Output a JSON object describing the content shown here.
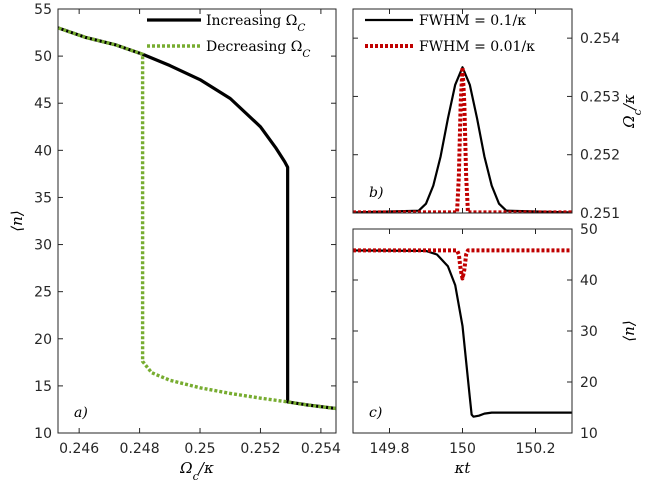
{
  "chart_data": [
    {
      "id": "a",
      "type": "line",
      "panel_label": "a)",
      "xlabel": "Ω_c/κ",
      "ylabel": "⟨n⟩",
      "xlim": [
        0.2453,
        0.2545
      ],
      "ylim": [
        10,
        55
      ],
      "xticks": [
        0.246,
        0.248,
        0.25,
        0.252,
        0.254
      ],
      "xtick_labels": [
        "0.246",
        "0.248",
        "0.25",
        "0.252",
        "0.254"
      ],
      "yticks": [
        10,
        15,
        20,
        25,
        30,
        35,
        40,
        45,
        50,
        55
      ],
      "ytick_labels": [
        "10",
        "15",
        "20",
        "25",
        "30",
        "35",
        "40",
        "45",
        "50",
        "55"
      ],
      "grid": false,
      "legend_position": "top-right",
      "series": [
        {
          "name": "Increasing Ω_C",
          "color": "#000000",
          "style": "solid",
          "x": [
            0.2453,
            0.2462,
            0.2472,
            0.2481,
            0.249,
            0.25,
            0.251,
            0.252,
            0.2525,
            0.2528,
            0.2529,
            0.2529,
            0.2529,
            0.2529,
            0.2535,
            0.2545
          ],
          "y": [
            53.0,
            52.0,
            51.2,
            50.2,
            49.0,
            47.5,
            45.5,
            42.5,
            40.3,
            38.8,
            38.2,
            35.0,
            25.0,
            13.3,
            13.0,
            12.6
          ]
        },
        {
          "name": "Decreasing Ω_C",
          "color": "#77ac30",
          "style": "dotted",
          "x": [
            0.2545,
            0.2535,
            0.2529,
            0.252,
            0.251,
            0.25,
            0.249,
            0.2484,
            0.2481,
            0.2481,
            0.2481,
            0.2481,
            0.2472,
            0.2462,
            0.2453
          ],
          "y": [
            12.6,
            13.0,
            13.3,
            13.7,
            14.2,
            14.8,
            15.6,
            16.4,
            17.6,
            19.0,
            30.0,
            50.2,
            51.2,
            52.0,
            53.0
          ]
        }
      ]
    },
    {
      "id": "b",
      "type": "line",
      "panel_label": "b)",
      "ylabel": "Ω_c/κ",
      "xlim": [
        149.7,
        150.3
      ],
      "ylim": [
        0.251,
        0.2545
      ],
      "yticks": [
        0.251,
        0.252,
        0.253,
        0.254
      ],
      "ytick_labels": [
        "0.251",
        "0.252",
        "0.253",
        "0.254"
      ],
      "y_axis_side": "right",
      "grid": false,
      "legend_position": "top",
      "series": [
        {
          "name": "FWHM = 0.1/κ",
          "color": "#000000",
          "style": "solid",
          "x": [
            149.7,
            149.88,
            149.9,
            149.92,
            149.94,
            149.96,
            149.98,
            150.0,
            150.02,
            150.04,
            150.06,
            150.08,
            150.1,
            150.12,
            150.3
          ],
          "y": [
            0.25101,
            0.25104,
            0.25116,
            0.25147,
            0.25197,
            0.25262,
            0.2532,
            0.2535,
            0.2532,
            0.25262,
            0.25197,
            0.25147,
            0.25116,
            0.25104,
            0.25101
          ]
        },
        {
          "name": "FWHM = 0.01/κ",
          "color": "#c00000",
          "style": "dotted",
          "x": [
            149.7,
            149.985,
            149.99,
            149.995,
            150.0,
            150.005,
            150.01,
            150.015,
            150.3
          ],
          "y": [
            0.25101,
            0.25101,
            0.25163,
            0.25288,
            0.2535,
            0.25288,
            0.25163,
            0.25101,
            0.25101
          ]
        }
      ]
    },
    {
      "id": "c",
      "type": "line",
      "panel_label": "c)",
      "xlabel": "κt",
      "ylabel": "⟨n⟩",
      "xlim": [
        149.7,
        150.3
      ],
      "ylim": [
        10,
        50
      ],
      "xticks": [
        149.8,
        150,
        150.2
      ],
      "xtick_labels": [
        "149.8",
        "150",
        "150.2"
      ],
      "yticks": [
        10,
        20,
        30,
        40,
        50
      ],
      "ytick_labels": [
        "10",
        "20",
        "30",
        "40",
        "50"
      ],
      "y_axis_side": "right",
      "grid": false,
      "series": [
        {
          "name": "FWHM = 0.1/κ",
          "color": "#000000",
          "style": "solid",
          "x": [
            149.7,
            149.9,
            149.93,
            149.96,
            149.98,
            150.0,
            150.01,
            150.02,
            150.025,
            150.03,
            150.045,
            150.06,
            150.08,
            150.1,
            150.3
          ],
          "y": [
            45.8,
            45.7,
            45.0,
            42.7,
            39.0,
            31.0,
            24.0,
            17.0,
            13.6,
            13.2,
            13.4,
            13.8,
            14.0,
            14.0,
            14.0
          ]
        },
        {
          "name": "FWHM = 0.01/κ",
          "color": "#c00000",
          "style": "dotted",
          "x": [
            149.7,
            149.985,
            149.99,
            149.995,
            150.0,
            150.005,
            150.01,
            150.015,
            150.3
          ],
          "y": [
            45.8,
            45.8,
            45.0,
            42.0,
            40.3,
            42.0,
            45.0,
            45.8,
            45.8
          ]
        }
      ]
    }
  ]
}
